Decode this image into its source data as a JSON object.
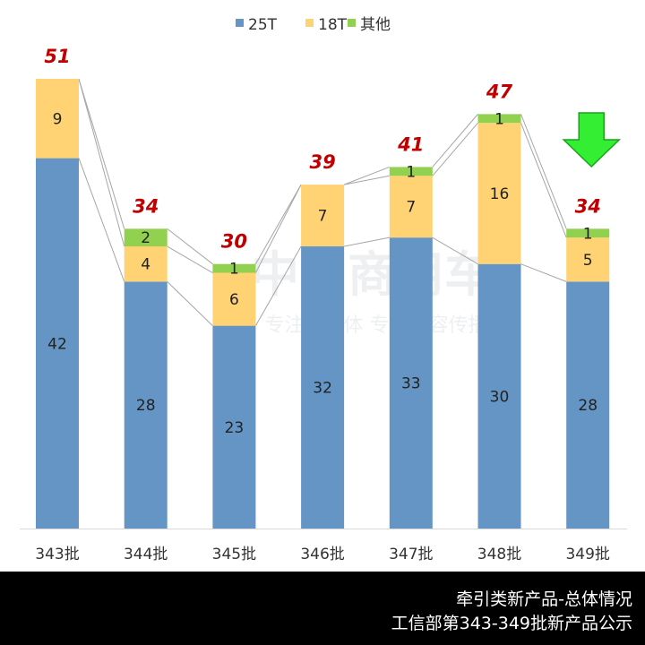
{
  "chart_data": {
    "type": "bar",
    "stacked": true,
    "categories": [
      "343批",
      "344批",
      "345批",
      "346批",
      "347批",
      "348批",
      "349批"
    ],
    "series": [
      {
        "name": "25T",
        "values": [
          42,
          28,
          23,
          32,
          33,
          30,
          28
        ],
        "color": "#6495c4"
      },
      {
        "name": "18T",
        "values": [
          9,
          4,
          6,
          7,
          7,
          16,
          5
        ],
        "color": "#ffd273"
      },
      {
        "name": "其他",
        "values": [
          0,
          2,
          1,
          0,
          1,
          1,
          1
        ],
        "color": "#92d050"
      }
    ],
    "totals": [
      51,
      34,
      30,
      39,
      41,
      47,
      34
    ],
    "total_label_color": "#c00000",
    "ylim": [
      0,
      51
    ],
    "legend_position": "top-center",
    "grid": false,
    "annotation": {
      "icon": "down-arrow-icon",
      "color": "#33ee33",
      "category": "349批"
    }
  },
  "watermark": {
    "line1": "中国商用车",
    "line2": "专注自媒体 专注内容传播"
  },
  "footer": {
    "line1": "牵引类新产品-总体情况",
    "line2": "工信部第343-349批新产品公示"
  }
}
